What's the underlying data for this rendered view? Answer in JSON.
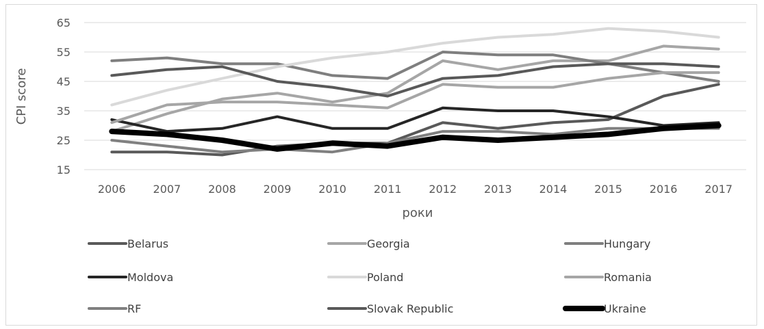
{
  "chart_data": {
    "type": "line",
    "title": "",
    "xlabel": "роки",
    "ylabel": "CPI score",
    "ylim": [
      15,
      65
    ],
    "yticks": [
      15,
      25,
      35,
      45,
      55,
      65
    ],
    "grid": true,
    "legend_position": "bottom",
    "x": [
      "2006",
      "2007",
      "2008",
      "2009",
      "2010",
      "2011",
      "2012",
      "2013",
      "2014",
      "2015",
      "2016",
      "2017"
    ],
    "series": [
      {
        "name": "Belarus",
        "color": "#595959",
        "values": [
          21,
          21,
          20,
          23,
          24,
          24,
          31,
          29,
          31,
          32,
          40,
          44
        ]
      },
      {
        "name": "Georgia",
        "color": "#a6a6a6",
        "values": [
          28,
          34,
          39,
          41,
          38,
          41,
          52,
          49,
          52,
          52,
          57,
          56
        ]
      },
      {
        "name": "Hungary",
        "color": "#7f7f7f",
        "values": [
          52,
          53,
          51,
          51,
          47,
          46,
          55,
          54,
          54,
          51,
          48,
          45
        ]
      },
      {
        "name": "Moldova",
        "color": "#262626",
        "values": [
          32,
          28,
          29,
          33,
          29,
          29,
          36,
          35,
          35,
          33,
          30,
          31
        ]
      },
      {
        "name": "Poland",
        "color": "#d9d9d9",
        "values": [
          37,
          42,
          46,
          50,
          53,
          55,
          58,
          60,
          61,
          63,
          62,
          60
        ]
      },
      {
        "name": "Romania",
        "color": "#a6a6a6",
        "values": [
          31,
          37,
          38,
          38,
          37,
          36,
          44,
          43,
          43,
          46,
          48,
          48
        ]
      },
      {
        "name": "RF",
        "color": "#808080",
        "values": [
          25,
          23,
          21,
          22,
          21,
          24,
          28,
          28,
          27,
          29,
          29,
          29
        ]
      },
      {
        "name": "Slovak Republic",
        "color": "#595959",
        "values": [
          47,
          49,
          50,
          45,
          43,
          40,
          46,
          47,
          50,
          51,
          51,
          50
        ]
      },
      {
        "name": "Ukraine",
        "color": "#000000",
        "values": [
          28,
          27,
          25,
          22,
          24,
          23,
          26,
          25,
          26,
          27,
          29,
          30
        ]
      }
    ]
  }
}
